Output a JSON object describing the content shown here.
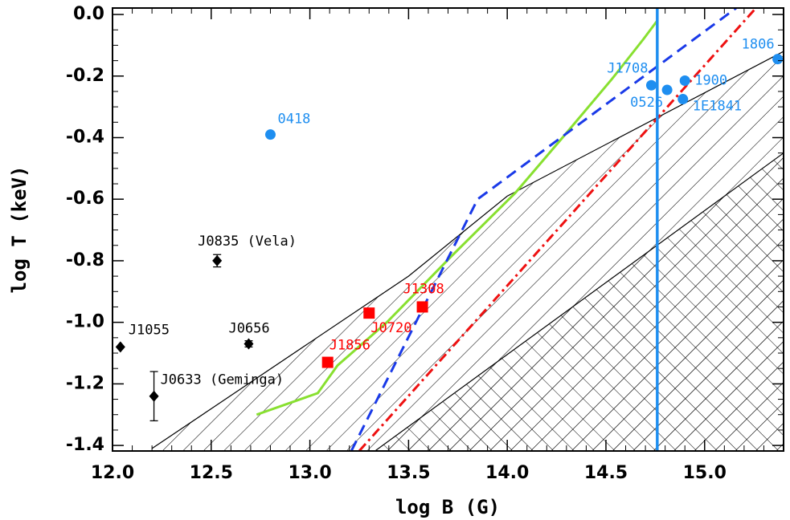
{
  "chart_data": {
    "type": "scatter",
    "xlabel": "log B (G)",
    "ylabel": "log T (keV)",
    "xlim": [
      12.0,
      15.4
    ],
    "ylim": [
      -1.418,
      0.021
    ],
    "xticks": [
      {
        "value": 12,
        "label": "12.0"
      },
      12.5,
      {
        "value": 13,
        "label": "13.0"
      },
      13.5,
      {
        "value": 14,
        "label": "14.0"
      },
      14.5,
      {
        "value": 15,
        "label": "15.0"
      }
    ],
    "yticks": [
      {
        "value": 0,
        "label": "0.0"
      },
      -0.2,
      -0.4,
      -0.6,
      -0.8,
      {
        "value": -1,
        "label": "-1.0"
      },
      -1.2,
      -1.4
    ],
    "hatched_regions": [
      {
        "pattern": "single",
        "x": [
          12.2,
          13.5,
          14.0,
          15.4
        ],
        "y": [
          -1.41,
          -0.85,
          -0.59,
          -0.12
        ]
      },
      {
        "pattern": "cross",
        "x": [
          13.33,
          15.4
        ],
        "y": [
          -1.418,
          -0.45
        ]
      }
    ],
    "curves": [
      {
        "color": "#88e030",
        "dash": "solid",
        "x": [
          12.73,
          13.04,
          13.14,
          13.39,
          13.71,
          14.04,
          14.28,
          14.53,
          14.69,
          14.76
        ],
        "y": [
          -1.3,
          -1.23,
          -1.14,
          -1.0,
          -0.79,
          -0.58,
          -0.4,
          -0.21,
          -0.08,
          -0.02
        ]
      },
      {
        "color": "#1a3ae8",
        "dash": "dash",
        "x": [
          13.21,
          13.85,
          15.16
        ],
        "y": [
          -1.418,
          -0.6,
          0.021
        ]
      },
      {
        "color": "#ee1111",
        "dash": "dashdot",
        "x": [
          13.25,
          15.26
        ],
        "y": [
          -1.418,
          0.021
        ]
      }
    ],
    "vlines": [
      {
        "color": "#1e8ef0",
        "x": 14.76
      }
    ],
    "points": [
      {
        "label": "0418",
        "x": 12.8,
        "y": -0.39,
        "color": "#1e8ef0",
        "marker": "circle"
      },
      {
        "label": "J1708",
        "x": 14.73,
        "y": -0.23,
        "color": "#1e8ef0",
        "marker": "circle"
      },
      {
        "label": "0526",
        "x": 14.81,
        "y": -0.245,
        "color": "#1e8ef0",
        "marker": "circle"
      },
      {
        "label": "1900",
        "x": 14.9,
        "y": -0.215,
        "color": "#1e8ef0",
        "marker": "circle"
      },
      {
        "label": "1E1841",
        "x": 14.89,
        "y": -0.275,
        "color": "#1e8ef0",
        "marker": "circle"
      },
      {
        "label": "1806",
        "x": 15.37,
        "y": -0.145,
        "color": "#1e8ef0",
        "marker": "circle"
      },
      {
        "label": "J1856",
        "x": 13.09,
        "y": -1.13,
        "color": "#ff0000",
        "marker": "square"
      },
      {
        "label": "J0720",
        "x": 13.3,
        "y": -0.97,
        "color": "#ff0000",
        "marker": "square"
      },
      {
        "label": "J1308",
        "x": 13.57,
        "y": -0.95,
        "color": "#ff0000",
        "marker": "square"
      },
      {
        "label": "J1055",
        "x": 12.04,
        "y": -1.08,
        "color": "#000000",
        "marker": "diamond"
      },
      {
        "label": "J0633 (Geminga)",
        "x": 12.21,
        "y": -1.24,
        "yerr": 0.08,
        "color": "#000000",
        "marker": "diamond"
      },
      {
        "label": "J0835 (Vela)",
        "x": 12.53,
        "y": -0.8,
        "yerr": 0.02,
        "color": "#000000",
        "marker": "diamond"
      },
      {
        "label": "J0656",
        "x": 12.69,
        "y": -1.07,
        "yerr": 0.01,
        "color": "#000000",
        "marker": "diamond"
      }
    ]
  }
}
